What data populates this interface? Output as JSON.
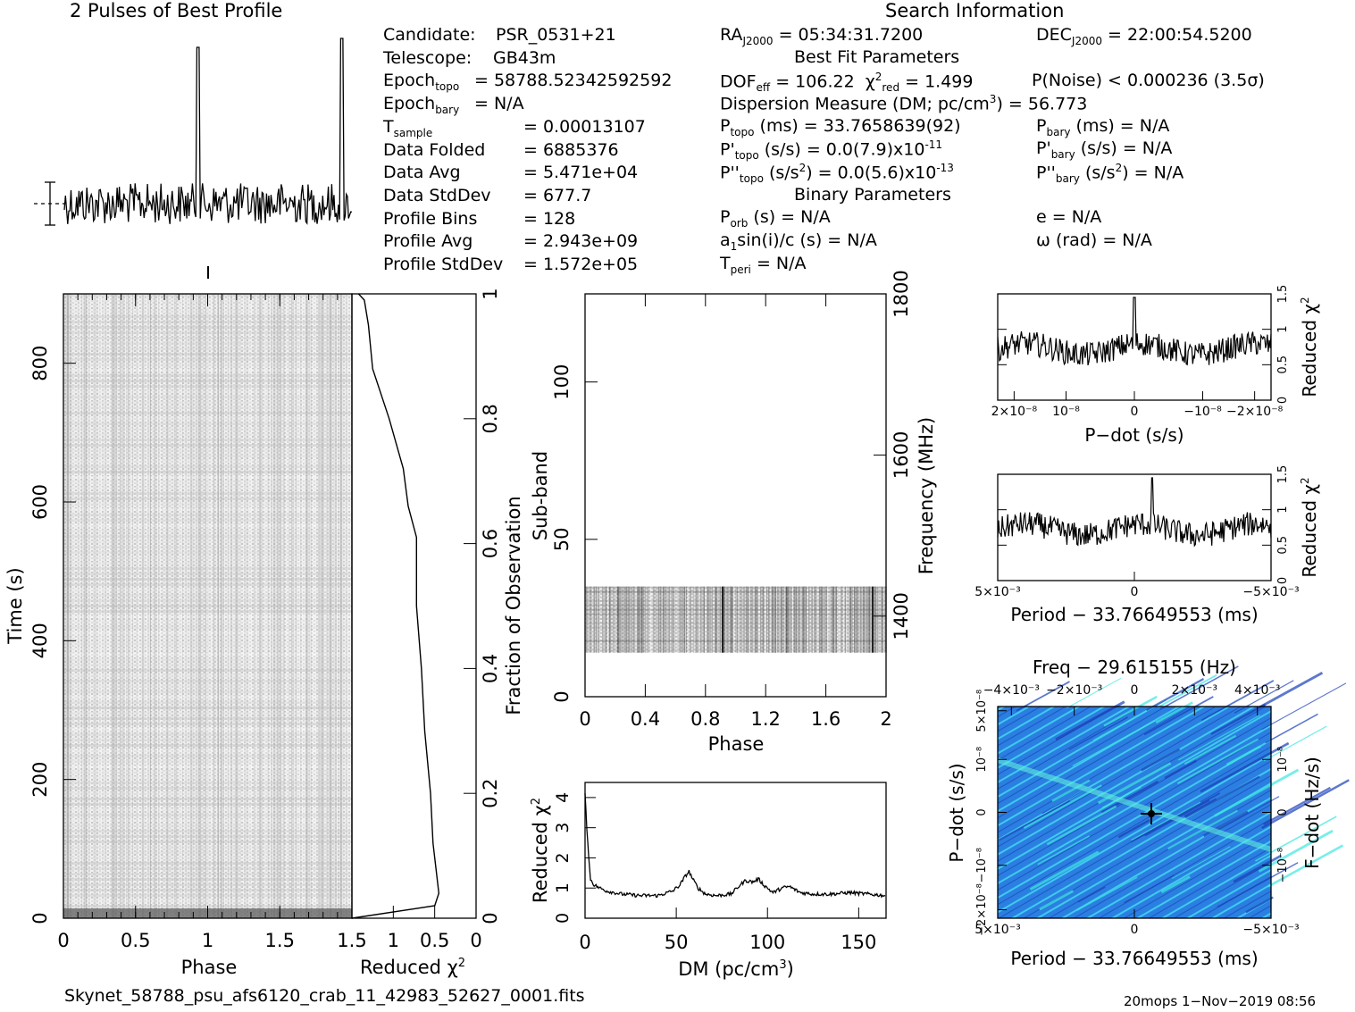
{
  "header": {
    "profile_title": "2 Pulses of Best Profile",
    "search_title": "Search Information"
  },
  "candidate_info": [
    {
      "label": "Candidate:",
      "value": "PSR_0531+21"
    },
    {
      "label": "Telescope:",
      "value": "GB43m"
    },
    {
      "label": "Epoch",
      "sub": "topo",
      "value": "= 58788.52342592592"
    },
    {
      "label": "Epoch",
      "sub": "bary",
      "value": "= N/A"
    },
    {
      "label": "T",
      "sub": "sample",
      "value": "=   0.00013107"
    },
    {
      "label": "Data Folded",
      "value": "=   6885376"
    },
    {
      "label": "Data Avg",
      "value": "=   5.471e+04"
    },
    {
      "label": "Data StdDev",
      "value": "=   677.7"
    },
    {
      "label": "Profile Bins",
      "value": "=   128"
    },
    {
      "label": "Profile Avg",
      "value": "=   2.943e+09"
    },
    {
      "label": "Profile StdDev",
      "value": "=   1.572e+05"
    }
  ],
  "search_info": {
    "ra_label": "RA",
    "ra_sub": "J2000",
    "ra_value": "= 05:34:31.7200",
    "dec_label": "DEC",
    "dec_sub": "J2000",
    "dec_value": "= 22:00:54.5200",
    "best_fit_title": "Best Fit Parameters",
    "dof_label": "DOF",
    "dof_sub": "eff",
    "dof_value": "= 106.22",
    "chi_label": "χ",
    "chi_sup": "2",
    "chi_sub": "red",
    "chi_value": "= 1.499",
    "pnoise": "P(Noise) < 0.000236   (3.5σ)",
    "dm_text": "Dispersion Measure (DM; pc/cm",
    "dm_sup": "3",
    "dm_value": ") = 56.773",
    "ptopo_label": "P",
    "ptopo_sub": "topo",
    "ptopo_value": "(ms) =  33.7658639(92)",
    "pbary_label": "P",
    "pbary_sub": "bary",
    "pbary_value": "(ms) = N/A",
    "pdtopo_label": "P'",
    "pdtopo_sub": "topo",
    "pdtopo_value": "(s/s) = 0.0(7.9)x10",
    "pdtopo_sup": "-11",
    "pdbary_label": "P'",
    "pdbary_sub": "bary",
    "pdbary_value": "(s/s) = N/A",
    "pddtopo_label": "P''",
    "pddtopo_sub": "topo",
    "pddtopo_value": "(s/s",
    "pddtopo_sup1": "2",
    "pddtopo_value2": ") = 0.0(5.6)x10",
    "pddtopo_sup2": "-13",
    "pddbary_label": "P''",
    "pddbary_sub": "bary",
    "pddbary_value": "(s/s",
    "pddbary_sup": "2",
    "pddbary_value2": ") = N/A",
    "binary_title": "Binary Parameters",
    "porb_label": "P",
    "porb_sub": "orb",
    "porb_value": "(s) = N/A",
    "e_text": "e = N/A",
    "a1_label": "a",
    "a1_sub": "1",
    "a1_value": "sin(i)/c (s) = N/A",
    "omega_text": "ω (rad) = N/A",
    "tperi_label": "T",
    "tperi_sub": "peri",
    "tperi_value": "= N/A"
  },
  "chart_data": [
    {
      "type": "line",
      "title": "2 Pulses of Best Profile",
      "x": [
        0,
        2
      ],
      "pulse_peaks_phase": [
        0.93,
        1.93
      ],
      "note": "two pulse peaks within 2 rotations"
    },
    {
      "type": "heatmap",
      "xlabel": "Phase",
      "ylabel": "Time (s)",
      "xlim": [
        0,
        2
      ],
      "ylim": [
        0,
        900
      ],
      "xticks": [
        "0",
        "0.5",
        "1",
        "1.5"
      ],
      "yticks": [
        "0",
        "200",
        "400",
        "600",
        "800"
      ]
    },
    {
      "type": "line",
      "xlabel": "Reduced χ2",
      "ylabel": "Fraction of Observation",
      "xlim": [
        1.5,
        0
      ],
      "ylim": [
        0,
        1
      ],
      "xticks": [
        "1.5",
        "1",
        "0.5",
        "0"
      ],
      "yticks": [
        "0",
        "0.2",
        "0.4",
        "0.6",
        "0.8",
        "1"
      ]
    },
    {
      "type": "heatmap",
      "xlabel": "Phase",
      "ylabel": "Sub-band",
      "y2label": "Frequency (MHz)",
      "xlim": [
        0,
        2
      ],
      "ylim": [
        0,
        128
      ],
      "y2lim": [
        1300,
        1800
      ],
      "xticks": [
        "0",
        "0.4",
        "0.8",
        "1.2",
        "1.6",
        "2"
      ],
      "yticks": [
        "0",
        "50",
        "100"
      ],
      "y2ticks": [
        "1400",
        "1600",
        "1800"
      ],
      "active_subbands": [
        14,
        35
      ]
    },
    {
      "type": "line",
      "xlabel": "DM (pc/cm3)",
      "ylabel": "Reduced χ2",
      "xlim": [
        0,
        165
      ],
      "ylim": [
        0,
        4.5
      ],
      "xticks": [
        "0",
        "50",
        "100",
        "150"
      ],
      "yticks": [
        "0",
        "1",
        "2",
        "3",
        "4"
      ],
      "x": [
        0,
        1,
        2,
        3,
        5,
        8,
        12,
        20,
        30,
        40,
        48,
        52,
        55,
        57,
        59,
        62,
        66,
        72,
        80,
        85,
        88,
        92,
        95,
        98,
        103,
        108,
        112,
        118,
        125,
        135,
        145,
        155,
        165
      ],
      "y": [
        4.2,
        3.0,
        2.0,
        1.3,
        1.1,
        1.0,
        0.9,
        0.8,
        0.75,
        0.75,
        0.9,
        1.1,
        1.4,
        1.55,
        1.3,
        1.0,
        0.8,
        0.75,
        0.8,
        1.1,
        1.25,
        1.2,
        1.3,
        1.1,
        0.85,
        1.0,
        1.05,
        0.85,
        0.8,
        0.8,
        0.85,
        0.8,
        0.75
      ]
    },
    {
      "type": "line",
      "xlabel": "P-dot (s/s)",
      "ylabel": "Reduced χ2",
      "ylim": [
        0,
        1.5
      ],
      "xticks": [
        "2×10⁻⁸",
        "10⁻⁸",
        "0",
        "−10⁻⁸",
        "−2×10⁻⁸"
      ],
      "yticks": [
        "0",
        "0.5",
        "1",
        "1.5"
      ],
      "peak_y": 1.45
    },
    {
      "type": "line",
      "xlabel": "Period − 33.76649553 (ms)",
      "ylabel": "Reduced χ2",
      "ylim": [
        0,
        1.5
      ],
      "xticks": [
        "5×10⁻³",
        "0",
        "−5×10⁻³"
      ],
      "yticks": [
        "0",
        "0.5",
        "1",
        "1.5"
      ],
      "peak_y": 1.45
    },
    {
      "type": "heatmap",
      "title": "Freq − 29.615155 (Hz)",
      "xlabel": "Period − 33.76649553 (ms)",
      "ylabel": "P-dot (s/s)",
      "y2label": "F-dot (Hz/s)",
      "xticks": [
        "5×10⁻³",
        "0",
        "−5×10⁻³"
      ],
      "x2ticks": [
        "−4×10⁻³",
        "−2×10⁻³",
        "0",
        "2×10⁻³",
        "4×10⁻³"
      ],
      "yticks": [
        "5×10⁻⁸",
        "10⁻⁸",
        "0",
        "−10⁻⁸",
        "−2×10⁻⁸"
      ],
      "y2ticks": [
        "10⁻⁸",
        "0",
        "−10⁻⁸"
      ]
    }
  ],
  "footer": {
    "filename": "Skynet_58788_psu_afs6120_crab_11_42983_52627_0001.fits",
    "stamp": "20mops   1−Nov−2019 08:56"
  },
  "labels": {
    "phase": "Phase",
    "time_s": "Time (s)",
    "reduced": "Reduced",
    "chi": "χ",
    "chi_sup": "2",
    "fraction": "Fraction of Observation",
    "subband": "Sub-band",
    "frequency": "Frequency (MHz)",
    "dm_label": "DM (pc/cm",
    "dm_sup": "3",
    "dm_close": ")",
    "pdot_ss": "P−dot (s/s)",
    "period_ms": "Period − 33.76649553 (ms)",
    "freq_title": "Freq − 29.615155 (Hz)",
    "fdot": "F−dot (Hz/s)"
  },
  "colors": {
    "ink": "#000000",
    "map_bg": "#1f78d8",
    "map_ridge": "#3ee8e0",
    "map_dark": "#1a3fb8"
  }
}
